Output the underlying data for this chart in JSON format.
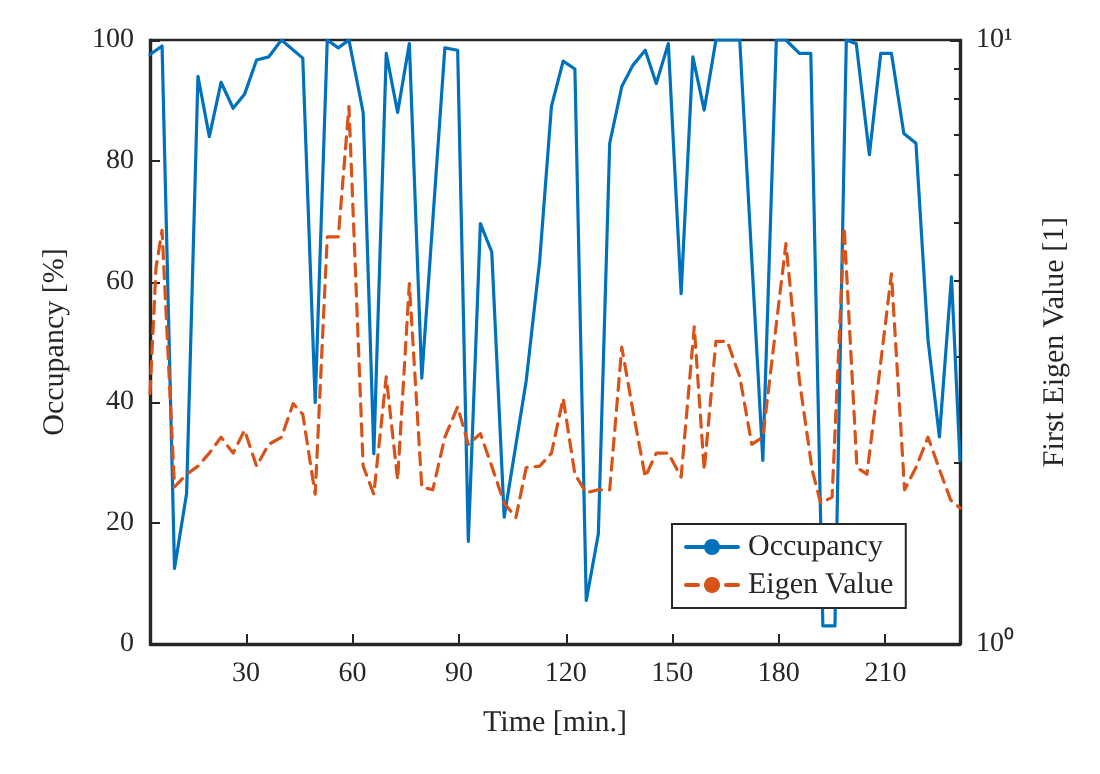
{
  "chart_data": {
    "type": "line",
    "xlabel": "Time [min.]",
    "ylabel": "Occupancy [%]",
    "y2label": "First Eigen Value [1]",
    "xlim": [
      3,
      231
    ],
    "xticks": [
      30,
      60,
      90,
      120,
      150,
      180,
      210
    ],
    "ylim": [
      0,
      100
    ],
    "yticks": [
      0,
      20,
      40,
      60,
      80,
      100
    ],
    "y2lim": [
      1,
      10
    ],
    "y2ticks": [
      {
        "value": 1,
        "label": "10⁰"
      },
      {
        "value": 10,
        "label": "10¹"
      }
    ],
    "log": "y2",
    "legend": "bottom right",
    "series": [
      {
        "name": "Occupancy",
        "color": "#0072bd",
        "line_style": "solid",
        "x": [
          3,
          6.4,
          9.9,
          13.3,
          16.5,
          19.7,
          23,
          26.4,
          29.6,
          33,
          36.4,
          40,
          46,
          49.5,
          52.9,
          56,
          59,
          63,
          66,
          69.5,
          72.7,
          76,
          79.5,
          86,
          89.6,
          92.6,
          96,
          99.2,
          102.7,
          108.9,
          112.7,
          116,
          119.3,
          122.6,
          125.8,
          129.2,
          132.4,
          135.8,
          138.9,
          142.4,
          145.5,
          148.9,
          152.5,
          155.8,
          159,
          162.3,
          169,
          175.5,
          179.3,
          182,
          185.8,
          189,
          192.4,
          195.8,
          199,
          201.8,
          205.5,
          208.7,
          211.7,
          215.2,
          218.6,
          222,
          225.2,
          228.6,
          231
        ],
        "values": [
          97.6,
          99,
          12.5,
          24.9,
          94,
          84,
          93,
          88.7,
          91,
          96.7,
          97.2,
          100,
          97,
          40,
          100,
          98.7,
          100,
          88,
          31.5,
          97.8,
          88,
          99.4,
          44,
          98.7,
          98.3,
          17,
          69.6,
          64.9,
          21,
          43.6,
          63.5,
          89,
          96.5,
          95.2,
          7.2,
          18.2,
          82.9,
          92.3,
          95.8,
          98.3,
          92.8,
          99.4,
          58,
          97.2,
          88.4,
          100,
          100,
          30.4,
          100,
          100,
          97.8,
          97.8,
          3,
          3,
          100,
          99.4,
          81,
          97.8,
          97.8,
          84.5,
          82.9,
          50.3,
          34.3,
          60.8,
          30.4
        ]
      },
      {
        "name": "Eigen Value",
        "color": "#d95319",
        "line_style": "dashed",
        "axis": "y2",
        "x": [
          3,
          4.7,
          6.4,
          9.9,
          13.3,
          16.5,
          19.7,
          23,
          26.4,
          29.6,
          33,
          36.4,
          40,
          43.3,
          46,
          49.5,
          52.9,
          56,
          59,
          63,
          66,
          69.5,
          72.7,
          76,
          79.5,
          82.6,
          86,
          89.6,
          92.6,
          96,
          99.2,
          102.7,
          106,
          108.9,
          112.7,
          116,
          119.3,
          122.6,
          125.8,
          129.2,
          132.4,
          135.8,
          138.9,
          142.4,
          145.5,
          148.9,
          152.5,
          156.2,
          159,
          162.3,
          165.5,
          169,
          172.4,
          175.5,
          182,
          185.8,
          189.4,
          191.8,
          195,
          198.4,
          202,
          204.8,
          208.3,
          211.7,
          215.4,
          218.6,
          222,
          225.7,
          228.4,
          231
        ],
        "values": [
          2.6,
          4.2,
          4.84,
          1.82,
          1.91,
          1.97,
          2.07,
          2.2,
          2.07,
          2.26,
          1.97,
          2.14,
          2.2,
          2.5,
          2.4,
          1.77,
          4.72,
          4.72,
          7.76,
          1.97,
          1.77,
          2.77,
          1.87,
          3.95,
          1.82,
          1.8,
          2.2,
          2.47,
          2.14,
          2.23,
          1.97,
          1.71,
          1.62,
          1.96,
          1.97,
          2.07,
          2.55,
          1.91,
          1.78,
          1.8,
          1.8,
          3.1,
          2.44,
          1.89,
          2.07,
          2.07,
          1.89,
          3.35,
          1.94,
          3.17,
          3.17,
          2.77,
          2.14,
          2.2,
          4.6,
          2.73,
          1.94,
          1.71,
          1.75,
          4.9,
          1.96,
          1.91,
          2.8,
          4.1,
          1.8,
          1.96,
          2.2,
          1.91,
          1.73,
          1.68
        ]
      }
    ]
  }
}
